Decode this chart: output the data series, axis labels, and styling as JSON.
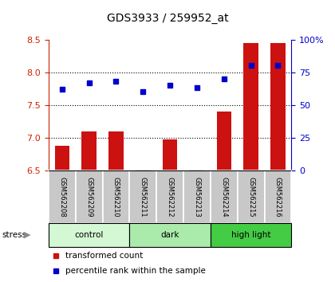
{
  "title": "GDS3933 / 259952_at",
  "samples": [
    "GSM562208",
    "GSM562209",
    "GSM562210",
    "GSM562211",
    "GSM562212",
    "GSM562213",
    "GSM562214",
    "GSM562215",
    "GSM562216"
  ],
  "transformed_count": [
    6.88,
    7.1,
    7.1,
    6.52,
    6.98,
    6.52,
    7.4,
    8.45,
    8.45
  ],
  "percentile_rank": [
    62,
    67,
    68,
    60,
    65,
    63,
    70,
    80,
    80
  ],
  "ylim_left": [
    6.5,
    8.5
  ],
  "ylim_right": [
    0,
    100
  ],
  "yticks_left": [
    6.5,
    7.0,
    7.5,
    8.0,
    8.5
  ],
  "yticks_right": [
    0,
    25,
    50,
    75,
    100
  ],
  "ytick_labels_right": [
    "0",
    "25",
    "50",
    "75",
    "100%"
  ],
  "grid_dotted_at": [
    7.0,
    7.5,
    8.0
  ],
  "groups": [
    {
      "label": "control",
      "start": 0,
      "end": 3,
      "color": "#d4f7d4"
    },
    {
      "label": "dark",
      "start": 3,
      "end": 6,
      "color": "#aaeaaa"
    },
    {
      "label": "high light",
      "start": 6,
      "end": 9,
      "color": "#44cc44"
    }
  ],
  "bar_color": "#cc1111",
  "dot_color": "#0000cc",
  "bar_width": 0.55,
  "background_labels": "#c8c8c8",
  "stress_label": "stress",
  "legend_red": "transformed count",
  "legend_blue": "percentile rank within the sample",
  "left_tick_color": "#cc2200",
  "right_tick_color": "#0000cc"
}
